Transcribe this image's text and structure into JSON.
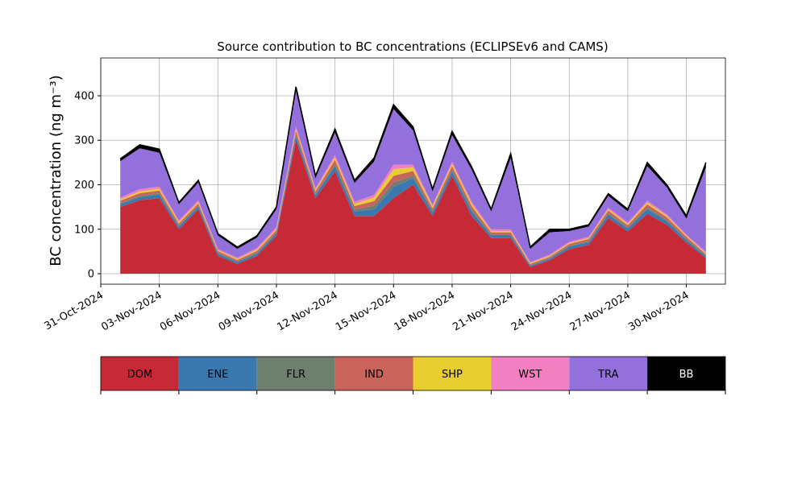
{
  "chart_data": {
    "type": "stacked_area",
    "title": "Source contribution to BC concentrations (ECLIPSEv6 and CAMS)",
    "y_label": "BC concentration (ng m⁻³)",
    "x": [
      "2024-11-01",
      "2024-11-02",
      "2024-11-03",
      "2024-11-04",
      "2024-11-05",
      "2024-11-06",
      "2024-11-07",
      "2024-11-08",
      "2024-11-09",
      "2024-11-10",
      "2024-11-11",
      "2024-11-12",
      "2024-11-13",
      "2024-11-14",
      "2024-11-15",
      "2024-11-16",
      "2024-11-17",
      "2024-11-18",
      "2024-11-19",
      "2024-11-20",
      "2024-11-21",
      "2024-11-22",
      "2024-11-23",
      "2024-11-24",
      "2024-11-25",
      "2024-11-26",
      "2024-11-27",
      "2024-11-28",
      "2024-11-29",
      "2024-11-30",
      "2024-12-01"
    ],
    "series": [
      {
        "name": "DOM",
        "color": "#c62a36",
        "values": [
          150,
          165,
          170,
          100,
          145,
          40,
          22,
          40,
          85,
          300,
          170,
          230,
          130,
          130,
          170,
          200,
          130,
          220,
          130,
          80,
          80,
          15,
          30,
          55,
          65,
          125,
          95,
          135,
          110,
          70,
          35
        ]
      },
      {
        "name": "ENE",
        "color": "#3a78b0",
        "values": [
          6,
          7,
          8,
          6,
          6,
          5,
          4,
          5,
          6,
          10,
          7,
          12,
          10,
          15,
          25,
          15,
          8,
          10,
          10,
          6,
          6,
          3,
          4,
          6,
          6,
          8,
          7,
          10,
          8,
          6,
          4
        ]
      },
      {
        "name": "FLR",
        "color": "#6e7f70",
        "values": [
          3,
          3,
          3,
          2,
          2,
          2,
          2,
          2,
          2,
          3,
          2,
          4,
          4,
          8,
          10,
          6,
          3,
          4,
          4,
          2,
          2,
          1,
          1,
          2,
          2,
          3,
          2,
          4,
          3,
          2,
          2
        ]
      },
      {
        "name": "IND",
        "color": "#c8645a",
        "values": [
          5,
          6,
          6,
          5,
          5,
          4,
          3,
          4,
          5,
          8,
          6,
          10,
          8,
          10,
          15,
          10,
          6,
          8,
          8,
          5,
          5,
          3,
          3,
          4,
          5,
          6,
          5,
          7,
          6,
          5,
          3
        ]
      },
      {
        "name": "SHP",
        "color": "#e7cd2f",
        "values": [
          3,
          4,
          4,
          3,
          3,
          2,
          2,
          3,
          3,
          4,
          3,
          5,
          5,
          8,
          15,
          8,
          4,
          5,
          5,
          3,
          3,
          2,
          2,
          2,
          2,
          3,
          3,
          4,
          3,
          2,
          2
        ]
      },
      {
        "name": "WST",
        "color": "#f27fbf",
        "values": [
          4,
          5,
          5,
          4,
          4,
          3,
          3,
          4,
          4,
          6,
          4,
          6,
          5,
          6,
          10,
          6,
          4,
          5,
          5,
          4,
          4,
          2,
          3,
          3,
          3,
          4,
          3,
          4,
          4,
          3,
          3
        ]
      },
      {
        "name": "TRA",
        "color": "#9370db",
        "values": [
          82,
          92,
          76,
          36,
          40,
          30,
          20,
          23,
          40,
          80,
          23,
          50,
          42,
          75,
          125,
          77,
          30,
          60,
          72,
          40,
          160,
          30,
          50,
          24,
          23,
          26,
          25,
          78,
          60,
          36,
          190
        ]
      },
      {
        "name": "BB",
        "color": "#000000",
        "values": [
          5,
          8,
          8,
          4,
          5,
          4,
          4,
          4,
          5,
          9,
          5,
          8,
          6,
          8,
          10,
          8,
          5,
          8,
          6,
          5,
          10,
          4,
          7,
          4,
          4,
          5,
          5,
          8,
          6,
          6,
          11
        ]
      }
    ],
    "xlim": [
      "2024-10-31",
      "2024-12-02"
    ],
    "xticks": [
      {
        "value": "2024-10-31",
        "label": "31-Oct-2024"
      },
      {
        "value": "2024-11-03",
        "label": "03-Nov-2024"
      },
      {
        "value": "2024-11-06",
        "label": "06-Nov-2024"
      },
      {
        "value": "2024-11-09",
        "label": "09-Nov-2024"
      },
      {
        "value": "2024-11-12",
        "label": "12-Nov-2024"
      },
      {
        "value": "2024-11-15",
        "label": "15-Nov-2024"
      },
      {
        "value": "2024-11-18",
        "label": "18-Nov-2024"
      },
      {
        "value": "2024-11-21",
        "label": "21-Nov-2024"
      },
      {
        "value": "2024-11-24",
        "label": "24-Nov-2024"
      },
      {
        "value": "2024-11-27",
        "label": "27-Nov-2024"
      },
      {
        "value": "2024-11-30",
        "label": "30-Nov-2024"
      }
    ],
    "ylim": [
      -23.5,
      485
    ],
    "yticks": [
      0,
      100,
      200,
      300,
      400
    ],
    "grid": true
  }
}
